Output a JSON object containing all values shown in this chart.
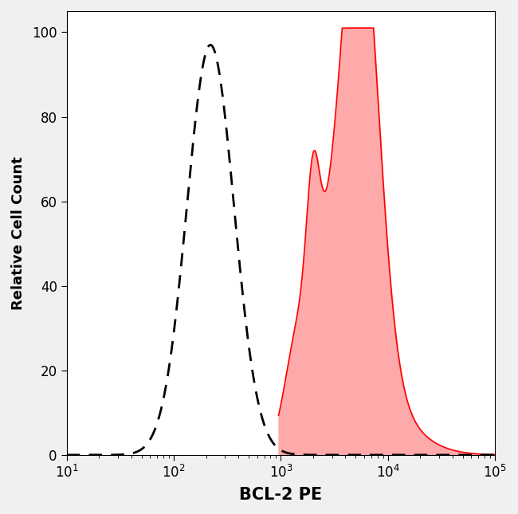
{
  "title": "",
  "xlabel": "BCL-2 PE",
  "ylabel": "Relative Cell Count",
  "xlim": [
    10,
    100000
  ],
  "ylim": [
    0,
    105
  ],
  "yticks": [
    0,
    20,
    40,
    60,
    80,
    100
  ],
  "background_color": "#f0f0f0",
  "plot_bg_color": "#ffffff",
  "dashed_color": "#000000",
  "red_fill_color": "#ffaaaa",
  "red_line_color": "#ff0000",
  "xlabel_fontsize": 15,
  "ylabel_fontsize": 13,
  "tick_fontsize": 12
}
